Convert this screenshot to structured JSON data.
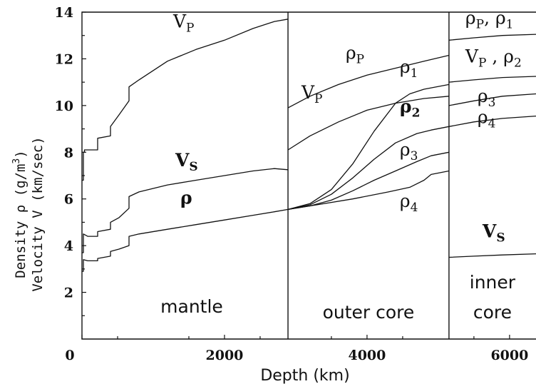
{
  "chart_data": {
    "type": "line",
    "title": "",
    "xlabel": "Depth (km)",
    "ylabel_line1": "Density ρ (g/m",
    "ylabel_line1_sup": "3",
    "ylabel_line1_end": ")",
    "ylabel_line2": "Velocity V (km/sec)",
    "xlim": [
      0,
      6371
    ],
    "ylim": [
      0,
      14
    ],
    "xticks": [
      0,
      2000,
      4000,
      6000
    ],
    "xtick_labels": [
      "0",
      "2000",
      "4000",
      "6000"
    ],
    "yticks": [
      2,
      4,
      6,
      8,
      10,
      12,
      14
    ],
    "ytick_labels": [
      "2",
      "4",
      "6",
      "8",
      "10",
      "12",
      "14"
    ],
    "grid": false,
    "boundaries": [
      2891,
      5150
    ],
    "regions": [
      {
        "label": "mantle",
        "x": 1540
      },
      {
        "label": "outer core",
        "x": 4020
      },
      {
        "label": "inner",
        "x": 5760
      },
      {
        "label": "core",
        "x": 5760
      }
    ],
    "series": [
      {
        "id": "vp_mantle",
        "x": [
          0,
          20,
          20,
          35,
          35,
          220,
          220,
          400,
          400,
          520,
          660,
          660,
          800,
          1200,
          1600,
          2000,
          2400,
          2700,
          2891
        ],
        "y": [
          6.8,
          6.8,
          8.0,
          8.0,
          8.1,
          8.1,
          8.6,
          8.7,
          9.1,
          9.6,
          10.2,
          10.8,
          11.1,
          11.9,
          12.4,
          12.8,
          13.3,
          13.6,
          13.7
        ]
      },
      {
        "id": "vs_mantle",
        "x": [
          0,
          20,
          20,
          80,
          220,
          220,
          400,
          400,
          520,
          660,
          660,
          800,
          1200,
          1600,
          2000,
          2400,
          2700,
          2891
        ],
        "y": [
          3.7,
          3.7,
          4.5,
          4.4,
          4.4,
          4.6,
          4.7,
          5.0,
          5.2,
          5.6,
          6.1,
          6.3,
          6.6,
          6.8,
          7.0,
          7.2,
          7.3,
          7.25
        ]
      },
      {
        "id": "rho_mantle",
        "x": [
          0,
          20,
          20,
          80,
          220,
          220,
          400,
          400,
          520,
          660,
          660,
          800,
          1200,
          1600,
          2000,
          2400,
          2700,
          2891
        ],
        "y": [
          2.9,
          2.9,
          3.4,
          3.35,
          3.35,
          3.45,
          3.55,
          3.75,
          3.85,
          4.0,
          4.4,
          4.5,
          4.7,
          4.9,
          5.1,
          5.3,
          5.45,
          5.55
        ]
      },
      {
        "id": "rho_p_outer",
        "x": [
          2891,
          3200,
          3600,
          4000,
          4400,
          4800,
          5150
        ],
        "y": [
          9.9,
          10.4,
          10.9,
          11.3,
          11.6,
          11.9,
          12.15
        ]
      },
      {
        "id": "vp_outer",
        "x": [
          2891,
          3200,
          3600,
          4000,
          4400,
          4800,
          5150
        ],
        "y": [
          8.1,
          8.7,
          9.3,
          9.8,
          10.1,
          10.3,
          10.4
        ]
      },
      {
        "id": "rho_1_outer",
        "x": [
          2891,
          3200,
          3500,
          3800,
          4100,
          4400,
          4600,
          4800,
          5150
        ],
        "y": [
          5.55,
          5.8,
          6.4,
          7.5,
          8.9,
          10.1,
          10.5,
          10.7,
          10.9
        ]
      },
      {
        "id": "rho_2_outer",
        "x": [
          2891,
          3200,
          3500,
          3800,
          4100,
          4400,
          4700,
          4900,
          5150
        ],
        "y": [
          5.55,
          5.75,
          6.2,
          6.9,
          7.7,
          8.4,
          8.8,
          8.95,
          9.1
        ]
      },
      {
        "id": "rho_3_outer",
        "x": [
          2891,
          3200,
          3500,
          3800,
          4100,
          4400,
          4700,
          4900,
          5150
        ],
        "y": [
          5.55,
          5.7,
          5.95,
          6.35,
          6.8,
          7.2,
          7.6,
          7.85,
          8.0
        ]
      },
      {
        "id": "rho_4_outer",
        "x": [
          2891,
          3300,
          3800,
          4300,
          4600,
          4800,
          4900,
          5150
        ],
        "y": [
          5.55,
          5.75,
          6.0,
          6.3,
          6.5,
          6.8,
          7.05,
          7.2
        ]
      },
      {
        "id": "rho_p_inner",
        "x": [
          5150,
          5500,
          5900,
          6371
        ],
        "y": [
          12.8,
          12.9,
          13.0,
          13.05
        ]
      },
      {
        "id": "vp_inner",
        "x": [
          5150,
          5500,
          5900,
          6371
        ],
        "y": [
          11.0,
          11.1,
          11.2,
          11.25
        ]
      },
      {
        "id": "rho_3_inner",
        "x": [
          5150,
          5500,
          5900,
          6371
        ],
        "y": [
          10.0,
          10.2,
          10.4,
          10.5
        ]
      },
      {
        "id": "rho_4_inner",
        "x": [
          5150,
          5500,
          5900,
          6371
        ],
        "y": [
          9.1,
          9.3,
          9.45,
          9.55
        ]
      },
      {
        "id": "vs_inner",
        "x": [
          5150,
          5500,
          5900,
          6371
        ],
        "y": [
          3.5,
          3.55,
          3.6,
          3.65
        ]
      }
    ],
    "curve_labels": [
      {
        "id": "lbl_vp_mantle",
        "main": "V",
        "sub": "P",
        "x": 1280,
        "y": 13.35,
        "bold": false
      },
      {
        "id": "lbl_vs_mantle",
        "main": "V",
        "sub": "S",
        "x": 1310,
        "y": 7.4,
        "bold": true
      },
      {
        "id": "lbl_rho_mantle",
        "main": "ρ",
        "sub": "",
        "x": 1380,
        "y": 5.8,
        "bold": true
      },
      {
        "id": "lbl_rhop_outer",
        "main": "ρ",
        "sub": "P",
        "x": 3700,
        "y": 12.0,
        "bold": false
      },
      {
        "id": "lbl_vp_outer",
        "main": "V",
        "sub": "P",
        "x": 3080,
        "y": 10.3,
        "bold": false
      },
      {
        "id": "lbl_rho1_outer",
        "main": "ρ",
        "sub": "1",
        "x": 4460,
        "y": 11.4,
        "bold": false
      },
      {
        "id": "lbl_rho2_outer",
        "main": "ρ",
        "sub": "2",
        "x": 4460,
        "y": 9.7,
        "bold": true
      },
      {
        "id": "lbl_rho3_outer",
        "main": "ρ",
        "sub": "3",
        "x": 4460,
        "y": 7.85,
        "bold": false
      },
      {
        "id": "lbl_rho4_outer",
        "main": "ρ",
        "sub": "4",
        "x": 4460,
        "y": 5.65,
        "bold": false
      },
      {
        "id": "lbl_rhop_rho1_inner",
        "main": "ρ",
        "sub": "P",
        "tail": ", ρ",
        "tail_sub": "1",
        "x": 5380,
        "y": 13.5,
        "bold": false
      },
      {
        "id": "lbl_vp_rho2_inner",
        "main": "V",
        "sub": "P",
        "tail": " , ρ",
        "tail_sub": "2",
        "x": 5380,
        "y": 11.85,
        "bold": false
      },
      {
        "id": "lbl_rho3_inner",
        "main": "ρ",
        "sub": "3",
        "x": 5550,
        "y": 10.15,
        "bold": false
      },
      {
        "id": "lbl_rho4_inner",
        "main": "ρ",
        "sub": "4",
        "x": 5550,
        "y": 9.25,
        "bold": false
      },
      {
        "id": "lbl_vs_inner",
        "main": "V",
        "sub": "S",
        "x": 5620,
        "y": 4.35,
        "bold": true
      }
    ]
  }
}
